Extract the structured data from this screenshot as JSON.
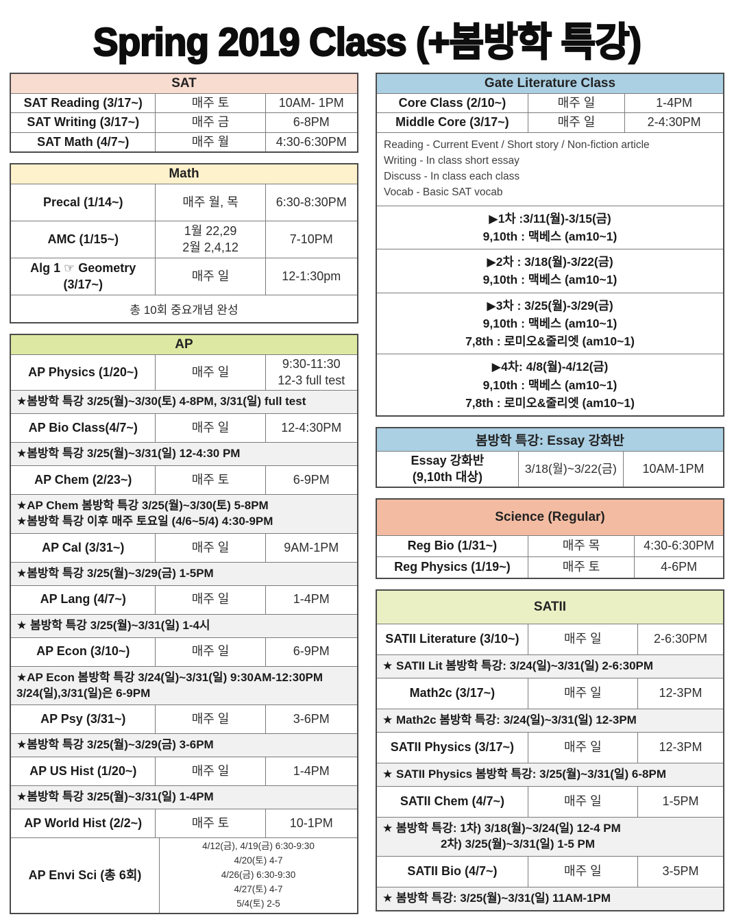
{
  "page_title": "Spring 2019 Class (+봄방학 특강)",
  "colors": {
    "sat_header": "#F9DCD0",
    "math_header": "#FEF2CC",
    "ap_header": "#DDE9A2",
    "gate_header": "#ABD0E4",
    "essay_header": "#ABD0E4",
    "science_header": "#F3BCA2",
    "satii_header": "#EAF0C4",
    "note_bg": "#F1F1F1",
    "border": "#4a4a4a"
  },
  "columns": {
    "left": [
      {
        "css": "sat",
        "title": "SAT",
        "header_bg": "#F9DCD0",
        "rows": [
          {
            "type": "class",
            "name": "SAT Reading (3/17~)",
            "schedule": "매주 토",
            "time": "10AM- 1PM"
          },
          {
            "type": "class",
            "name": "SAT Writing (3/17~)",
            "schedule": "매주 금",
            "time": "6-8PM"
          },
          {
            "type": "class",
            "name": "SAT Math (4/7~)",
            "schedule": "매주 월",
            "time": "4:30-6:30PM"
          }
        ]
      },
      {
        "css": "math",
        "title": "Math",
        "header_bg": "#FEF2CC",
        "rows": [
          {
            "type": "class",
            "name": "Precal (1/14~)",
            "schedule": "매주 월, 목",
            "time": "6:30-8:30PM"
          },
          {
            "type": "class",
            "name": "AMC (1/15~)",
            "schedule": "1월 22,29\n2월 2,4,12",
            "time": "7-10PM"
          },
          {
            "type": "class",
            "name": "Alg 1 ☞ Geometry\n(3/17~)",
            "schedule": "매주 일",
            "time": "12-1:30pm"
          },
          {
            "type": "footer",
            "text": "총 10회 중요개념 완성"
          }
        ]
      },
      {
        "css": "ap",
        "title": "AP",
        "header_bg": "#DDE9A2",
        "rows": [
          {
            "type": "class",
            "name": "AP Physics (1/20~)",
            "schedule": "매주 일",
            "time": "9:30-11:30\n12-3 full test"
          },
          {
            "type": "note",
            "text": "★봄방학 특강 3/25(월)~3/30(토) 4-8PM, 3/31(일) full test"
          },
          {
            "type": "class",
            "name": "AP Bio Class(4/7~)",
            "schedule": "매주 일",
            "time": "12-4:30PM"
          },
          {
            "type": "note",
            "text": "★봄방학 특강 3/25(월)~3/31(일) 12-4:30 PM"
          },
          {
            "type": "class",
            "name": "AP Chem (2/23~)",
            "schedule": "매주 토",
            "time": "6-9PM"
          },
          {
            "type": "note",
            "text": "★AP Chem 봄방학 특강 3/25(월)~3/30(토) 5-8PM\n★봄방학 특강 이후 매주 토요일 (4/6~5/4) 4:30-9PM"
          },
          {
            "type": "class",
            "name": "AP Cal (3/31~)",
            "schedule": "매주 일",
            "time": "9AM-1PM"
          },
          {
            "type": "note",
            "text": "★봄방학 특강 3/25(월)~3/29(금) 1-5PM"
          },
          {
            "type": "class",
            "name": "AP Lang (4/7~)",
            "schedule": "매주 일",
            "time": "1-4PM"
          },
          {
            "type": "note",
            "text": "★ 봄방학 특강 3/25(월)~3/31(일) 1-4시"
          },
          {
            "type": "class",
            "name": "AP Econ (3/10~)",
            "schedule": "매주 일",
            "time": "6-9PM"
          },
          {
            "type": "note",
            "text": "★AP Econ 봄방학 특강 3/24(일)~3/31(일) 9:30AM-12:30PM\n3/24(일),3/31(일)은 6-9PM"
          },
          {
            "type": "class",
            "name": "AP Psy (3/31~)",
            "schedule": "매주 일",
            "time": "3-6PM"
          },
          {
            "type": "note",
            "text": "★봄방학 특강 3/25(월)~3/29(금) 3-6PM"
          },
          {
            "type": "class",
            "name": "AP US Hist (1/20~)",
            "schedule": "매주 일",
            "time": "1-4PM"
          },
          {
            "type": "note",
            "text": "★봄방학 특강 3/25(월)~3/31(일) 1-4PM"
          },
          {
            "type": "class",
            "name": "AP World Hist (2/2~)",
            "schedule": "매주 토",
            "time": "10-1PM"
          },
          {
            "type": "class2",
            "name": "AP Envi Sci (총 6회)",
            "detail": "4/12(금), 4/19(금) 6:30-9:30\n4/20(토) 4-7\n4/26(금) 6:30-9:30\n4/27(토) 4-7\n5/4(토) 2-5"
          }
        ]
      }
    ],
    "right": [
      {
        "css": "gate",
        "title": "Gate Literature Class",
        "header_bg": "#ABD0E4",
        "rows": [
          {
            "type": "class",
            "name": "Core Class (2/10~)",
            "schedule": "매주 일",
            "time": "1-4PM"
          },
          {
            "type": "class",
            "name": "Middle Core (3/17~)",
            "schedule": "매주 일",
            "time": "2-4:30PM"
          },
          {
            "type": "info",
            "text": "Reading - Current Event / Short story / Non-fiction article\nWriting - In class short essay\nDiscuss - In class each class\nVocab - Basic SAT vocab"
          },
          {
            "type": "session",
            "text": "▶1차 :3/11(월)-3/15(금)\n9,10th : 맥베스 (am10~1)"
          },
          {
            "type": "session",
            "text": "▶2차 : 3/18(월)-3/22(금)\n9,10th : 맥베스 (am10~1)"
          },
          {
            "type": "session",
            "text": "▶3차 : 3/25(월)-3/29(금)\n9,10th : 맥베스 (am10~1)\n7,8th : 로미오&줄리엣 (am10~1)"
          },
          {
            "type": "session",
            "text": "▶4차: 4/8(월)-4/12(금)\n9,10th : 맥베스 (am10~1)\n7,8th : 로미오&줄리엣 (am10~1)"
          }
        ]
      },
      {
        "css": "essay",
        "title": "봄방학 특강: Essay 강화반",
        "header_bg": "#ABD0E4",
        "rows": [
          {
            "type": "class",
            "name": "Essay 강화반\n(9,10th 대상)",
            "schedule": "3/18(월)~3/22(금)",
            "time": "10AM-1PM"
          }
        ]
      },
      {
        "css": "science",
        "title": "Science (Regular)",
        "header_bg": "#F3BCA2",
        "rows": [
          {
            "type": "class",
            "name": "Reg Bio (1/31~)",
            "schedule": "매주 목",
            "time": "4:30-6:30PM"
          },
          {
            "type": "class",
            "name": "Reg Physics (1/19~)",
            "schedule": "매주 토",
            "time": "4-6PM"
          }
        ]
      },
      {
        "css": "satii",
        "title": "SATII",
        "header_bg": "#EAF0C4",
        "rows": [
          {
            "type": "class",
            "name": "SATII Literature (3/10~)",
            "schedule": "매주 일",
            "time": "2-6:30PM"
          },
          {
            "type": "note",
            "text": "★ SATII Lit 봄방학 특강: 3/24(일)~3/31(일) 2-6:30PM"
          },
          {
            "type": "class",
            "name": "Math2c (3/17~)",
            "schedule": "매주 일",
            "time": "12-3PM"
          },
          {
            "type": "note",
            "text": "★ Math2c 봄방학 특강: 3/24(일)~3/31(일) 12-3PM"
          },
          {
            "type": "class",
            "name": "SATII Physics (3/17~)",
            "schedule": "매주 일",
            "time": "12-3PM"
          },
          {
            "type": "note",
            "text": "★ SATII Physics 봄방학 특강: 3/25(월)~3/31(일) 6-8PM"
          },
          {
            "type": "class",
            "name": "SATII Chem (4/7~)",
            "schedule": "매주 일",
            "time": "1-5PM"
          },
          {
            "type": "note",
            "text": "★ 봄방학 특강: 1차) 3/18(월)~3/24(일) 12-4 PM\n                  2차) 3/25(월)~3/31(일) 1-5 PM"
          },
          {
            "type": "class",
            "name": "SATII Bio (4/7~)",
            "schedule": "매주 일",
            "time": "3-5PM"
          },
          {
            "type": "note",
            "text": "★ 봄방학 특강: 3/25(월)~3/31(일) 11AM-1PM"
          }
        ]
      }
    ]
  }
}
